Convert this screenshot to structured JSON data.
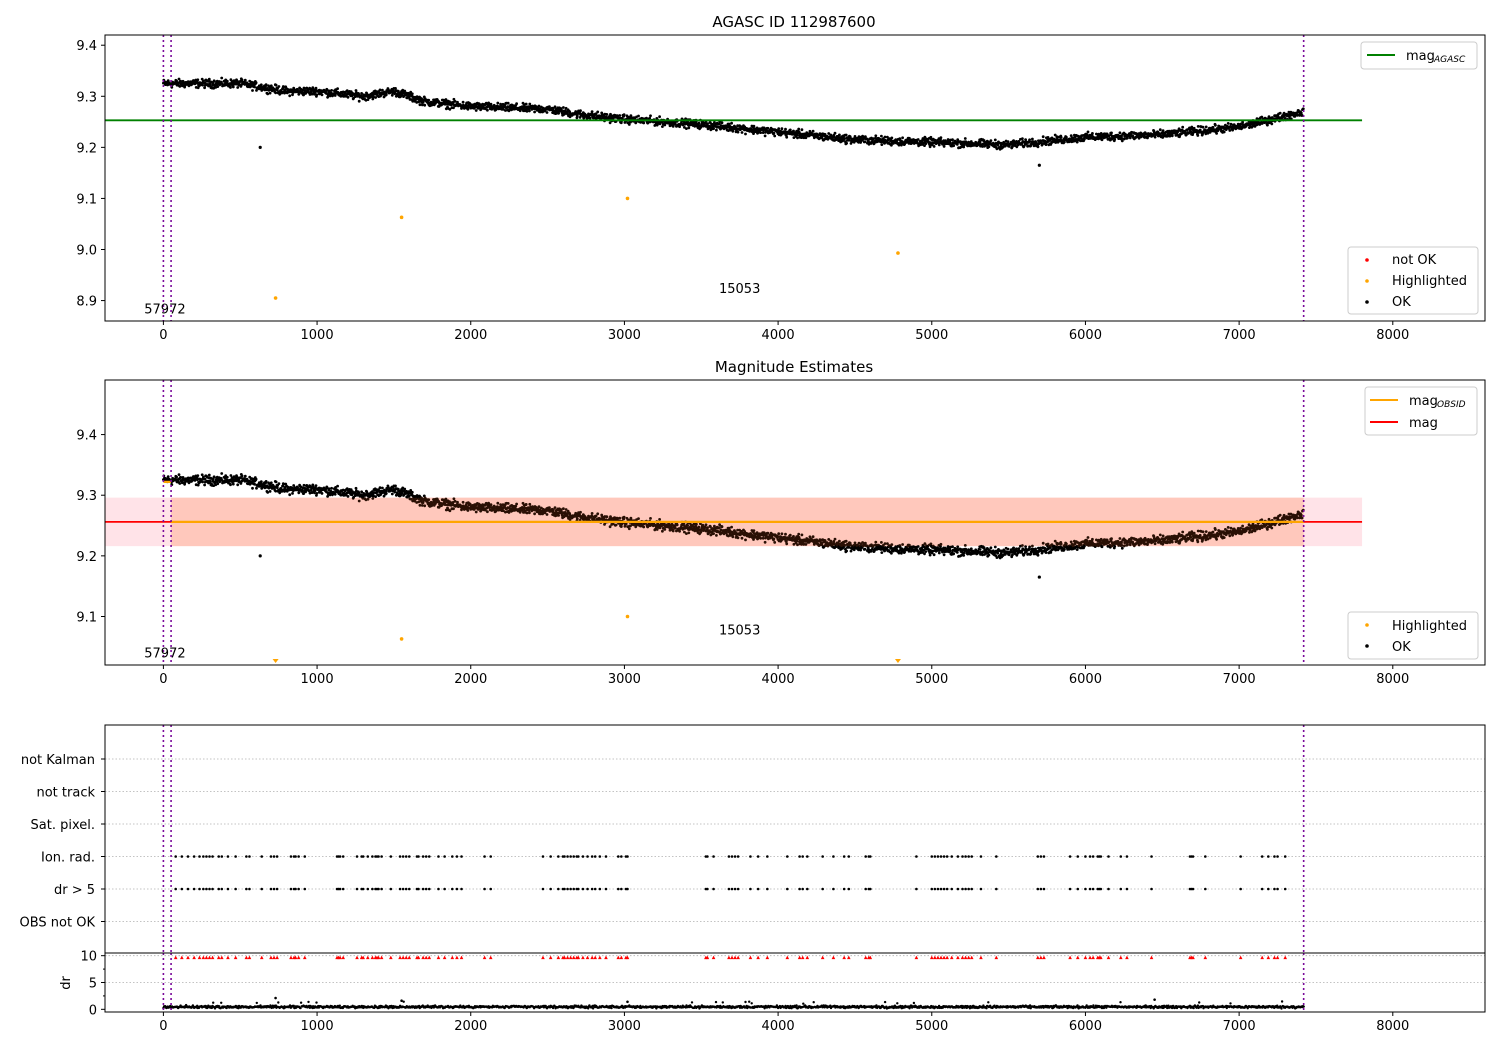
{
  "figure_title": "AGASC ID 112987600",
  "chart_data": [
    {
      "id": "p1",
      "type": "scatter",
      "title": "AGASC ID 112987600",
      "xlim": [
        -380,
        8600
      ],
      "ylim": [
        8.86,
        9.42
      ],
      "xticks": [
        0,
        1000,
        2000,
        3000,
        4000,
        5000,
        6000,
        7000,
        8000
      ],
      "yticks": [
        8.9,
        9.0,
        9.1,
        9.2,
        9.3,
        9.4
      ],
      "ytick_labels": [
        "8.9",
        "9.0",
        "9.1",
        "9.2",
        "9.3",
        "9.4"
      ],
      "trend": [
        [
          0,
          9.325
        ],
        [
          200,
          9.325
        ],
        [
          500,
          9.325
        ],
        [
          800,
          9.31
        ],
        [
          1000,
          9.31
        ],
        [
          1300,
          9.3
        ],
        [
          1500,
          9.31
        ],
        [
          1700,
          9.29
        ],
        [
          2000,
          9.28
        ],
        [
          2500,
          9.275
        ],
        [
          2700,
          9.265
        ],
        [
          3000,
          9.255
        ],
        [
          3500,
          9.245
        ],
        [
          4000,
          9.23
        ],
        [
          4500,
          9.215
        ],
        [
          5000,
          9.21
        ],
        [
          5500,
          9.205
        ],
        [
          6000,
          9.22
        ],
        [
          6500,
          9.225
        ],
        [
          7000,
          9.24
        ],
        [
          7420,
          9.27
        ]
      ],
      "ok_noise": 0.012,
      "ok_outliers": [
        {
          "x": 630,
          "y": 9.2
        },
        {
          "x": 5700,
          "y": 9.165
        }
      ],
      "highlighted": [
        {
          "x": 730,
          "y": 8.905
        },
        {
          "x": 1550,
          "y": 9.063
        },
        {
          "x": 3020,
          "y": 9.1
        },
        {
          "x": 4780,
          "y": 8.993
        }
      ],
      "hlines": [
        {
          "label": "mag_AGASC",
          "y": 9.253,
          "x0": -380,
          "x1": 7800,
          "color": "#008000"
        }
      ],
      "vlines": [
        0,
        50,
        7420
      ],
      "annotations": [
        {
          "text": "57972",
          "x": 10,
          "y": 8.875
        },
        {
          "text": "15053",
          "x": 3750,
          "y": 8.915
        }
      ],
      "legend_top": [
        {
          "label": "mag",
          "sub": "AGASC",
          "color": "#008000"
        }
      ],
      "legend_bottom": [
        {
          "label": "not OK",
          "color": "#ff0000"
        },
        {
          "label": "Highlighted",
          "color": "#ffa500"
        },
        {
          "label": "OK",
          "color": "#000000"
        }
      ]
    },
    {
      "id": "p2",
      "type": "scatter",
      "title": "Magnitude Estimates",
      "xlim": [
        -380,
        8600
      ],
      "ylim": [
        9.02,
        9.49
      ],
      "xticks": [
        0,
        1000,
        2000,
        3000,
        4000,
        5000,
        6000,
        7000,
        8000
      ],
      "yticks": [
        9.1,
        9.2,
        9.3,
        9.4
      ],
      "ytick_labels": [
        "9.1",
        "9.2",
        "9.3",
        "9.4"
      ],
      "ok_outliers": [
        {
          "x": 630,
          "y": 9.2
        },
        {
          "x": 5700,
          "y": 9.165
        }
      ],
      "highlighted": [
        {
          "x": 1550,
          "y": 9.063
        },
        {
          "x": 3020,
          "y": 9.1
        }
      ],
      "clipped_highlighted_x": [
        730,
        4780
      ],
      "band_pink": {
        "y0": 9.216,
        "y1": 9.296,
        "x0": -380,
        "x1": 7800
      },
      "band_orange": {
        "y0": 9.216,
        "y1": 9.296,
        "x0": 50,
        "x1": 7420
      },
      "mag_line": {
        "y": 9.256,
        "x0": -380,
        "x1": 7800,
        "color": "#ff0000"
      },
      "mag_obsid_segments": [
        {
          "x0": 0,
          "x1": 50,
          "y": 9.322
        },
        {
          "x0": 50,
          "x1": 7420,
          "y": 9.256
        }
      ],
      "vlines": [
        0,
        50,
        7420
      ],
      "annotations": [
        {
          "text": "57972",
          "x": 10,
          "y": 9.032
        },
        {
          "text": "15053",
          "x": 3750,
          "y": 9.07
        }
      ],
      "legend_top": [
        {
          "label": "mag",
          "sub": "OBSID",
          "color": "#ffa500"
        },
        {
          "label": "mag",
          "sub": "",
          "color": "#ff0000"
        }
      ],
      "legend_bottom": [
        {
          "label": "Highlighted",
          "color": "#ffa500"
        },
        {
          "label": "OK",
          "color": "#000000"
        }
      ]
    },
    {
      "id": "p3",
      "type": "flags",
      "xlim": [
        -380,
        8600
      ],
      "categories": [
        "not Kalman",
        "not track",
        "Sat. pixel.",
        "Ion. rad.",
        "dr > 5",
        "OBS not OK"
      ],
      "flag_x": [
        80,
        120,
        160,
        200,
        235,
        260,
        280,
        300,
        320,
        360,
        380,
        420,
        470,
        540,
        560,
        640,
        700,
        720,
        740,
        830,
        850,
        860,
        880,
        920,
        1130,
        1140,
        1150,
        1170,
        1260,
        1290,
        1300,
        1330,
        1360,
        1380,
        1390,
        1400,
        1420,
        1480,
        1540,
        1560,
        1580,
        1600,
        1650,
        1660,
        1690,
        1710,
        1730,
        1790,
        1830,
        1880,
        1910,
        1940,
        2090,
        2130,
        2470,
        2520,
        2570,
        2600,
        2610,
        2630,
        2650,
        2670,
        2690,
        2700,
        2730,
        2760,
        2790,
        2810,
        2840,
        2880,
        2960,
        2980,
        3010,
        3020,
        3530,
        3540,
        3580,
        3680,
        3700,
        3720,
        3740,
        3820,
        3870,
        3930,
        4060,
        4140,
        4160,
        4190,
        4290,
        4360,
        4430,
        4460,
        4570,
        4590,
        4600,
        4900,
        5000,
        5020,
        5040,
        5060,
        5080,
        5100,
        5130,
        5170,
        5200,
        5220,
        5240,
        5260,
        5320,
        5420,
        5690,
        5710,
        5730,
        5900,
        5950,
        6000,
        6030,
        6050,
        6080,
        6090,
        6100,
        6150,
        6230,
        6270,
        6430,
        6680,
        6690,
        6700,
        6780,
        7010,
        7150,
        7190,
        7230,
        7250,
        7300
      ],
      "flag_rows": [
        "Ion. rad.",
        "dr > 5"
      ],
      "vlines": [
        0,
        50,
        7420
      ]
    },
    {
      "id": "p4",
      "type": "scatter",
      "ylabel": "dr",
      "xlim": [
        -380,
        8600
      ],
      "ylim": [
        -0.5,
        10.5
      ],
      "xticks": [
        0,
        1000,
        2000,
        3000,
        4000,
        5000,
        6000,
        7000,
        8000
      ],
      "yticks": [
        0,
        5,
        10
      ],
      "ytick_labels": [
        "0",
        "5",
        "10"
      ],
      "dr_base": 0.45,
      "dr_spikes": [
        {
          "x": 730,
          "y": 2.1
        },
        {
          "x": 1550,
          "y": 1.6
        },
        {
          "x": 3020,
          "y": 1.4
        },
        {
          "x": 6450,
          "y": 1.8
        }
      ],
      "clipped_flag_x_ref": "p3.flag_x",
      "vlines": [
        0,
        50,
        7420
      ]
    }
  ]
}
